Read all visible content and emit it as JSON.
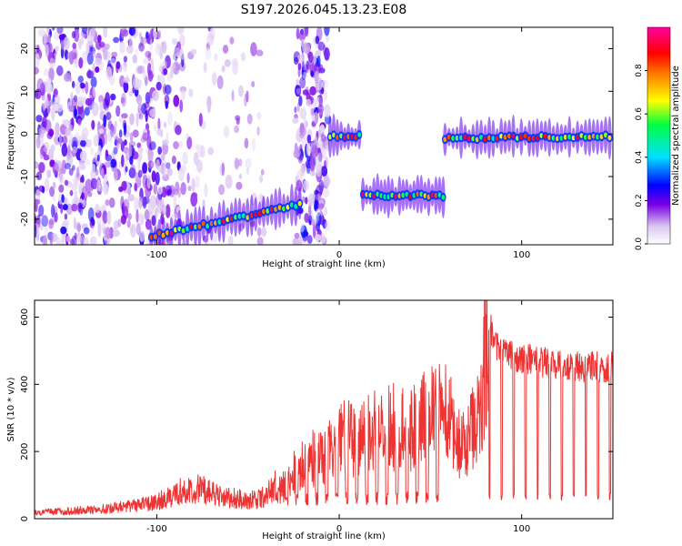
{
  "figure_title": "S197.2026.045.13.23.E08",
  "colors": {
    "snr_line": "#ee3333",
    "background": "#ffffff",
    "axis": "#000000"
  },
  "chart_data": [
    {
      "type": "heatmap",
      "name": "spectrogram",
      "title": "S197.2026.045.13.23.E08",
      "xlabel": "Height of straight line (km)",
      "ylabel": "Frequency (Hz)",
      "xlim": [
        -167,
        150
      ],
      "ylim": [
        -26,
        25
      ],
      "xticks": [
        -100,
        0,
        100
      ],
      "xtick_labels": [
        "-100",
        "0",
        "100"
      ],
      "yticks": [
        -20,
        -10,
        0,
        10,
        20
      ],
      "ytick_labels": [
        "-20",
        "-10",
        "0",
        "10",
        "20"
      ],
      "colorbar": {
        "label": "Normalized spectral amplitude",
        "range": [
          0.0,
          1.0
        ],
        "ticks": [
          0.0,
          0.2,
          0.4,
          0.6,
          0.8
        ],
        "tick_labels": [
          "0.0",
          "0.2",
          "0.4",
          "0.6",
          "0.8"
        ],
        "colormap": "rainbow (white-lavender-purple-blue-cyan-green-yellow-orange-red-magenta)"
      },
      "features": [
        {
          "segment": "scattered noise",
          "x_range": [
            -167,
            -5
          ],
          "freq_range": [
            -26,
            25
          ],
          "amplitude": "0.0-0.25"
        },
        {
          "segment": "rising track",
          "x_range": [
            -103,
            -20
          ],
          "freq_start": -24,
          "freq_end": -16.5,
          "amplitude": "0.3-0.9"
        },
        {
          "segment": "track 1",
          "x_range": [
            -5,
            12
          ],
          "freq": -0.5,
          "amplitude": "0.4-0.8"
        },
        {
          "segment": "track 2",
          "x_range": [
            12,
            57
          ],
          "freq": -14.5,
          "amplitude": "0.4-0.9"
        },
        {
          "segment": "track 3",
          "x_range": [
            57,
            150
          ],
          "freq": -1.0,
          "amplitude": "0.4-0.9"
        }
      ]
    },
    {
      "type": "line",
      "name": "snr",
      "xlabel": "Height of straight line (km)",
      "ylabel": "SNR (10 * v/v)",
      "xlim": [
        -167,
        150
      ],
      "ylim": [
        0,
        650
      ],
      "xticks": [
        -100,
        0,
        100
      ],
      "xtick_labels": [
        "-100",
        "0",
        "100"
      ],
      "yticks": [
        0,
        200,
        400,
        600
      ],
      "ytick_labels": [
        "0",
        "200",
        "400",
        "600"
      ],
      "series": [
        {
          "name": "SNR",
          "x": [
            -167,
            -160,
            -150,
            -140,
            -130,
            -120,
            -110,
            -100,
            -95,
            -90,
            -85,
            -80,
            -75,
            -70,
            -65,
            -60,
            -55,
            -50,
            -45,
            -40,
            -35,
            -30,
            -25,
            -20,
            -18,
            -15,
            -10,
            -5,
            0,
            5,
            10,
            15,
            20,
            25,
            30,
            35,
            40,
            45,
            50,
            55,
            57,
            60,
            65,
            70,
            73,
            75,
            78,
            80,
            82,
            85,
            90,
            95,
            100,
            105,
            110,
            115,
            120,
            125,
            130,
            135,
            140,
            145,
            150
          ],
          "y": [
            20,
            22,
            25,
            28,
            32,
            38,
            45,
            55,
            70,
            80,
            95,
            100,
            95,
            85,
            75,
            70,
            65,
            60,
            65,
            75,
            110,
            140,
            190,
            230,
            260,
            250,
            270,
            300,
            330,
            340,
            350,
            360,
            370,
            380,
            385,
            390,
            400,
            420,
            430,
            440,
            420,
            380,
            260,
            230,
            320,
            360,
            420,
            560,
            640,
            560,
            550,
            530,
            520,
            520,
            510,
            510,
            505,
            500,
            500,
            495,
            500,
            490,
            500
          ]
        }
      ]
    }
  ]
}
